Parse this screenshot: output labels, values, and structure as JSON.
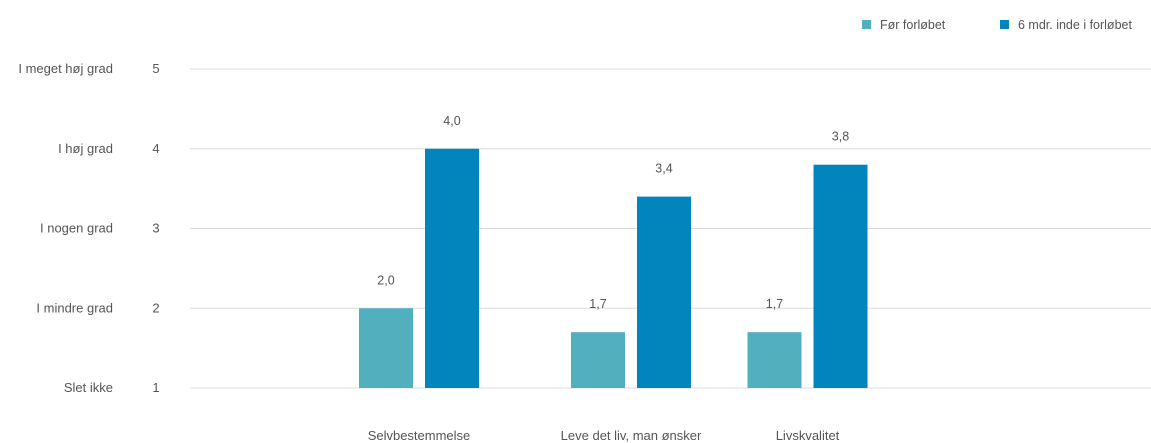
{
  "chart_data": {
    "type": "bar",
    "categories": [
      "Selvbestemmelse",
      "Leve det liv, man ønsker",
      "Livskvalitet"
    ],
    "series": [
      {
        "name": "Før forløbet",
        "values": [
          2.0,
          1.7,
          1.7
        ],
        "value_labels": [
          "2,0",
          "1,7",
          "1,7"
        ],
        "color": "#52AFBE"
      },
      {
        "name": "6 mdr. inde i forløbet",
        "values": [
          4.0,
          3.4,
          3.8
        ],
        "value_labels": [
          "4,0",
          "3,4",
          "3,8"
        ],
        "color": "#0285BD"
      }
    ],
    "ylim": [
      1,
      5
    ],
    "yticks": [
      5,
      4,
      3,
      2,
      1
    ],
    "ytick_names": [
      "I meget høj grad",
      "I høj grad",
      "I nogen grad",
      "I mindre grad",
      "Slet ikke"
    ],
    "ytick_numbers": [
      "5",
      "4",
      "3",
      "2",
      "1"
    ],
    "grid": true,
    "legend_position": "top-right",
    "title": "",
    "xlabel": "",
    "ylabel": ""
  }
}
